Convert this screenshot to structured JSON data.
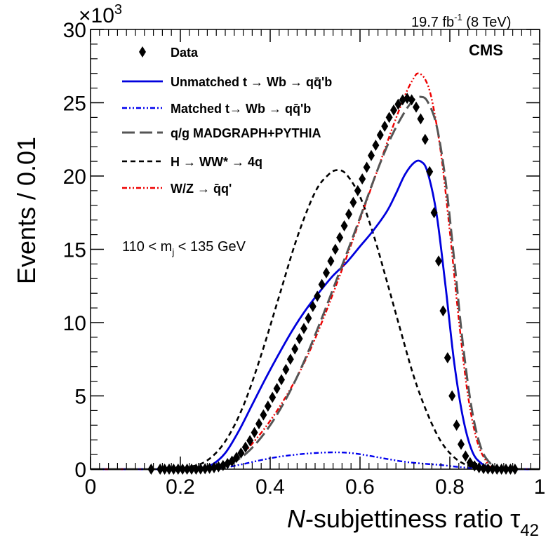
{
  "chart_data": {
    "type": "line",
    "title": "",
    "xlabel_italic": "N",
    "xlabel_rest": "-subjettiness ratio τ",
    "xlabel_sub": "42",
    "ylabel": "Events / 0.01",
    "y_multiplier": "×10",
    "y_multiplier_exp": "3",
    "lumi_label": "19.7 fb",
    "lumi_sup": "-1",
    "lumi_energy": " (8 TeV)",
    "experiment": "CMS",
    "cut_label": "110 < m",
    "cut_sub": "j",
    "cut_rest": " < 135 GeV",
    "xlim": [
      0,
      1
    ],
    "ylim": [
      0,
      30
    ],
    "xticks": [
      0,
      0.2,
      0.4,
      0.6,
      0.8,
      1
    ],
    "xtick_labels": [
      "0",
      "0.2",
      "0.4",
      "0.6",
      "0.8",
      "1"
    ],
    "yticks": [
      0,
      5,
      10,
      15,
      20,
      25,
      30
    ],
    "ytick_labels": [
      "0",
      "5",
      "10",
      "15",
      "20",
      "25",
      "30"
    ],
    "legend": [
      {
        "key": "data",
        "label": "Data"
      },
      {
        "key": "unmatched",
        "label": "Unmatched t → Wb → qq̄'b"
      },
      {
        "key": "matched",
        "label": "Matched t→ Wb → qq̄'b"
      },
      {
        "key": "qcd",
        "label": "q/g MADGRAPH+PYTHIA"
      },
      {
        "key": "higgs",
        "label": "H → WW* → 4q"
      },
      {
        "key": "wz",
        "label": "W/Z → q̄q'"
      }
    ],
    "series": [
      {
        "key": "data",
        "name": "Data",
        "style": "markers",
        "color": "#000000",
        "x": [
          0.135,
          0.155,
          0.165,
          0.175,
          0.185,
          0.195,
          0.205,
          0.215,
          0.225,
          0.235,
          0.245,
          0.255,
          0.265,
          0.275,
          0.285,
          0.295,
          0.305,
          0.315,
          0.325,
          0.335,
          0.345,
          0.355,
          0.365,
          0.375,
          0.385,
          0.395,
          0.405,
          0.415,
          0.425,
          0.435,
          0.445,
          0.455,
          0.465,
          0.475,
          0.485,
          0.495,
          0.505,
          0.515,
          0.525,
          0.535,
          0.545,
          0.555,
          0.565,
          0.575,
          0.585,
          0.595,
          0.605,
          0.615,
          0.625,
          0.635,
          0.645,
          0.655,
          0.665,
          0.675,
          0.685,
          0.695,
          0.705,
          0.715,
          0.725,
          0.735,
          0.745,
          0.755,
          0.765,
          0.775,
          0.785,
          0.795,
          0.805,
          0.815,
          0.825,
          0.835,
          0.845,
          0.855,
          0.865,
          0.875,
          0.885,
          0.895,
          0.905,
          0.915,
          0.925,
          0.935,
          0.945
        ],
        "y": [
          0.0,
          0.0,
          0.0,
          0.0,
          0.0,
          0.0,
          0.0,
          0.0,
          0.0,
          0.0,
          0.01,
          0.03,
          0.06,
          0.1,
          0.16,
          0.25,
          0.38,
          0.55,
          0.8,
          1.1,
          1.5,
          1.95,
          2.5,
          3.1,
          3.7,
          4.3,
          4.9,
          5.5,
          6.1,
          6.8,
          7.5,
          8.2,
          8.9,
          9.6,
          10.3,
          11.1,
          11.8,
          12.6,
          13.4,
          14.2,
          15.0,
          15.8,
          16.6,
          17.4,
          18.2,
          19.0,
          19.8,
          20.6,
          21.4,
          22.1,
          22.8,
          23.4,
          24.0,
          24.5,
          24.9,
          25.2,
          25.3,
          25.2,
          24.7,
          23.9,
          22.5,
          20.3,
          17.5,
          14.2,
          10.8,
          7.6,
          5.0,
          3.0,
          1.7,
          0.9,
          0.45,
          0.22,
          0.1,
          0.04,
          0.02,
          0.01,
          0.0,
          0.0,
          0.0,
          0.0,
          0.0
        ]
      },
      {
        "key": "unmatched",
        "name": "Unmatched t → Wb → qq̄'b",
        "style": "solid",
        "color": "#0000dd",
        "x": [
          0,
          0.2,
          0.24,
          0.27,
          0.3,
          0.33,
          0.36,
          0.39,
          0.42,
          0.45,
          0.48,
          0.51,
          0.54,
          0.57,
          0.6,
          0.63,
          0.66,
          0.68,
          0.7,
          0.72,
          0.735,
          0.75,
          0.77,
          0.79,
          0.81,
          0.83,
          0.85,
          0.87,
          0.89,
          0.91,
          1
        ],
        "y": [
          0,
          0,
          0.05,
          0.3,
          1.1,
          2.6,
          4.4,
          6.2,
          7.9,
          9.5,
          10.9,
          12.1,
          13.2,
          14.1,
          15.2,
          16.3,
          17.6,
          18.8,
          20.1,
          20.9,
          21.0,
          20.3,
          17.5,
          12.6,
          7.2,
          3.4,
          1.2,
          0.4,
          0.1,
          0.02,
          0
        ]
      },
      {
        "key": "matched",
        "name": "Matched t→ Wb → qq̄'b",
        "style": "dashdotdot",
        "color": "#0000ee",
        "x": [
          0,
          0.22,
          0.26,
          0.3,
          0.34,
          0.38,
          0.42,
          0.46,
          0.5,
          0.54,
          0.58,
          0.62,
          0.66,
          0.7,
          0.74,
          0.78,
          0.82,
          0.86,
          0.9,
          1
        ],
        "y": [
          0,
          0,
          0.03,
          0.12,
          0.35,
          0.62,
          0.85,
          1.0,
          1.1,
          1.15,
          1.1,
          0.92,
          0.7,
          0.5,
          0.38,
          0.28,
          0.15,
          0.04,
          0,
          0
        ]
      },
      {
        "key": "qcd",
        "name": "q/g MADGRAPH+PYTHIA",
        "style": "longdash",
        "color": "#555555",
        "x": [
          0,
          0.25,
          0.28,
          0.31,
          0.34,
          0.37,
          0.4,
          0.43,
          0.46,
          0.49,
          0.52,
          0.55,
          0.58,
          0.61,
          0.64,
          0.67,
          0.7,
          0.72,
          0.735,
          0.75,
          0.77,
          0.79,
          0.81,
          0.83,
          0.85,
          0.87,
          0.89,
          0.91,
          1
        ],
        "y": [
          0,
          0,
          0.1,
          0.35,
          0.9,
          1.8,
          3.0,
          4.5,
          6.3,
          8.4,
          10.7,
          13.1,
          15.5,
          18.0,
          20.5,
          22.7,
          24.4,
          25.2,
          25.4,
          25.1,
          23.5,
          19.8,
          14.2,
          8.3,
          3.9,
          1.4,
          0.4,
          0.05,
          0
        ]
      },
      {
        "key": "higgs",
        "name": "H → WW* → 4q",
        "style": "shortdash",
        "color": "#000000",
        "x": [
          0,
          0.18,
          0.22,
          0.26,
          0.3,
          0.34,
          0.38,
          0.42,
          0.46,
          0.5,
          0.53,
          0.55,
          0.57,
          0.6,
          0.63,
          0.66,
          0.69,
          0.72,
          0.75,
          0.78,
          0.81,
          0.84,
          0.87,
          0.9,
          1
        ],
        "y": [
          0,
          0,
          0.15,
          0.6,
          1.9,
          4.3,
          7.8,
          11.8,
          15.8,
          18.9,
          20.1,
          20.4,
          20.1,
          18.6,
          16.0,
          12.8,
          9.5,
          6.3,
          3.8,
          1.9,
          0.8,
          0.25,
          0.05,
          0,
          0
        ]
      },
      {
        "key": "wz",
        "name": "W/Z → q̄q'",
        "style": "dashdotdot",
        "color": "#ee0000",
        "x": [
          0,
          0.25,
          0.28,
          0.31,
          0.34,
          0.37,
          0.4,
          0.43,
          0.46,
          0.49,
          0.52,
          0.55,
          0.58,
          0.61,
          0.64,
          0.67,
          0.7,
          0.72,
          0.73,
          0.745,
          0.76,
          0.78,
          0.8,
          0.82,
          0.84,
          0.86,
          0.88,
          0.9,
          1
        ],
        "y": [
          0,
          0,
          0.15,
          0.45,
          1.1,
          2.1,
          3.3,
          4.7,
          6.3,
          8.2,
          10.4,
          12.8,
          15.3,
          17.9,
          20.5,
          23.1,
          25.5,
          26.7,
          27.0,
          26.6,
          25.2,
          21.6,
          16.2,
          10.2,
          5.1,
          2.0,
          0.6,
          0.1,
          0
        ]
      }
    ]
  }
}
